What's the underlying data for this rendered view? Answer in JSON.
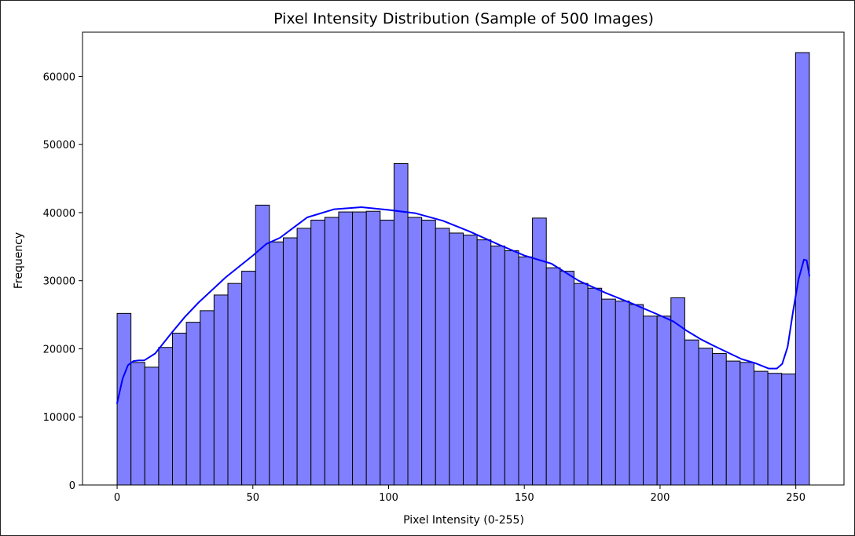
{
  "chart_data": {
    "type": "histogram",
    "title": "Pixel Intensity Distribution (Sample of 500 Images)",
    "xlabel": "Pixel Intensity (0-255)",
    "ylabel": "Frequency",
    "xlim": [
      -12.75,
      267.75
    ],
    "ylim": [
      0,
      66500
    ],
    "xticks": [
      0,
      50,
      100,
      150,
      200,
      250
    ],
    "yticks": [
      0,
      10000,
      20000,
      30000,
      40000,
      50000,
      60000
    ],
    "bin_edges": [
      0,
      5.1,
      10.2,
      15.3,
      20.4,
      25.5,
      30.6,
      35.7,
      40.8,
      45.9,
      51.0,
      56.1,
      61.2,
      66.3,
      71.4,
      76.5,
      81.6,
      86.7,
      91.8,
      96.9,
      102.0,
      107.1,
      112.2,
      117.3,
      122.4,
      127.5,
      132.6,
      137.7,
      142.8,
      147.9,
      153.0,
      158.1,
      163.2,
      168.3,
      173.4,
      178.5,
      183.6,
      188.7,
      193.8,
      198.9,
      204.0,
      209.1,
      214.2,
      219.3,
      224.4,
      229.5,
      234.6,
      239.7,
      244.8,
      249.9,
      255.0
    ],
    "counts": [
      25200,
      18000,
      17300,
      20200,
      22300,
      23900,
      25600,
      27900,
      29600,
      31400,
      41100,
      35700,
      36300,
      37700,
      38900,
      39300,
      40100,
      40100,
      40200,
      38900,
      47200,
      39300,
      38900,
      37700,
      37000,
      36700,
      36000,
      35100,
      34400,
      33500,
      39200,
      31900,
      31400,
      29600,
      28900,
      27300,
      27000,
      26500,
      24800,
      24800,
      27500,
      21300,
      20100,
      19300,
      18200,
      18000,
      16700,
      16400,
      16300,
      63500
    ],
    "kde": {
      "x": [
        0,
        2,
        4,
        6,
        8,
        10,
        14,
        20,
        25,
        30,
        40,
        50,
        55,
        60,
        70,
        80,
        90,
        100,
        110,
        120,
        130,
        140,
        150,
        160,
        170,
        180,
        190,
        200,
        205,
        210,
        215,
        220,
        230,
        235,
        240,
        243,
        245,
        247,
        249,
        251,
        253,
        254,
        255
      ],
      "y": [
        12000,
        15600,
        17600,
        18200,
        18300,
        18300,
        19300,
        22300,
        24700,
        26800,
        30500,
        33700,
        35400,
        36300,
        39300,
        40500,
        40800,
        40400,
        39900,
        38800,
        37200,
        35400,
        33700,
        32500,
        30000,
        28200,
        26600,
        24900,
        24000,
        22600,
        21400,
        20400,
        18500,
        17900,
        17100,
        17100,
        17800,
        20300,
        25500,
        30200,
        33100,
        33000,
        30700
      ]
    },
    "bar_color": "#7f7fff",
    "bar_edge_color": "#000000",
    "kde_color": "#0000ff",
    "grid": false,
    "legend": false
  }
}
